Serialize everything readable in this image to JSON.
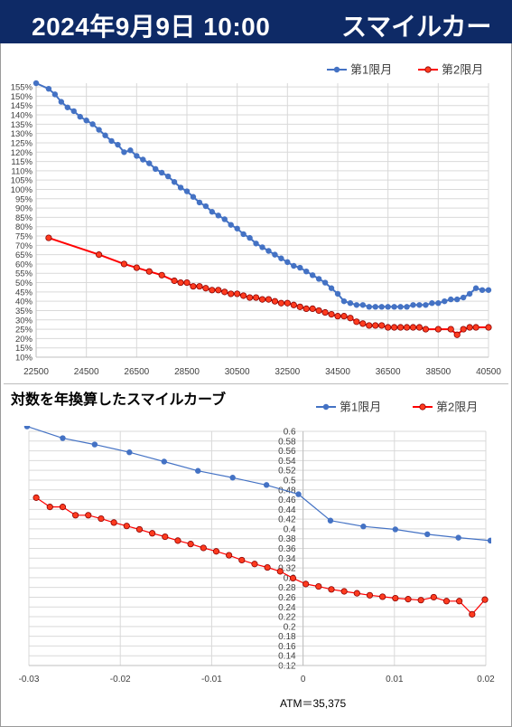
{
  "header": {
    "date": "2024年9月9日 10:00",
    "title": "スマイルカーブ"
  },
  "colors": {
    "header_bg": "#0e2a66",
    "series1": "#4472c4",
    "series2": "#ff0000"
  },
  "chart_data": [
    {
      "type": "line",
      "title": "",
      "legend": "top-right",
      "grid": true,
      "xlim": [
        22500,
        40500
      ],
      "ylim": [
        10,
        157
      ],
      "x_ticks": [
        22500,
        24500,
        26500,
        28500,
        30500,
        32500,
        34500,
        36500,
        38500,
        40500
      ],
      "y_ticks": [
        10,
        15,
        20,
        25,
        30,
        35,
        40,
        45,
        50,
        55,
        60,
        65,
        70,
        75,
        80,
        85,
        90,
        95,
        100,
        105,
        110,
        115,
        120,
        125,
        130,
        135,
        140,
        145,
        150,
        155
      ],
      "y_tick_suffix": "%",
      "series": [
        {
          "name": "第1限月",
          "x": [
            22500,
            23000,
            23250,
            23500,
            23750,
            24000,
            24250,
            24500,
            24750,
            25000,
            25250,
            25500,
            25750,
            26000,
            26250,
            26500,
            26750,
            27000,
            27250,
            27500,
            27750,
            28000,
            28250,
            28500,
            28750,
            29000,
            29250,
            29500,
            29750,
            30000,
            30250,
            30500,
            30750,
            31000,
            31250,
            31500,
            31750,
            32000,
            32250,
            32500,
            32750,
            33000,
            33250,
            33500,
            33750,
            34000,
            34250,
            34500,
            34750,
            35000,
            35250,
            35500,
            35750,
            36000,
            36250,
            36500,
            36750,
            37000,
            37250,
            37500,
            37750,
            38000,
            38250,
            38500,
            38750,
            39000,
            39250,
            39500,
            39750,
            40000,
            40250,
            40500
          ],
          "values": [
            157,
            154,
            151,
            147,
            144,
            142,
            139,
            137,
            135,
            132,
            129,
            126,
            124,
            120,
            121,
            118,
            116,
            114,
            111,
            109,
            107,
            104,
            101,
            99,
            96,
            93,
            91,
            88,
            86,
            84,
            81,
            79,
            76,
            74,
            71,
            69,
            67,
            65,
            63,
            61,
            59,
            58,
            56,
            54,
            52,
            50,
            47,
            44,
            40,
            39,
            38,
            38,
            37,
            37,
            37,
            37,
            37,
            37,
            37,
            38,
            38,
            38,
            39,
            39,
            40,
            41,
            41,
            42,
            44,
            47,
            46,
            46
          ]
        },
        {
          "name": "第2限月",
          "x": [
            23000,
            25000,
            26000,
            26500,
            27000,
            27500,
            28000,
            28250,
            28500,
            28750,
            29000,
            29250,
            29500,
            29750,
            30000,
            30250,
            30500,
            30750,
            31000,
            31250,
            31500,
            31750,
            32000,
            32250,
            32500,
            32750,
            33000,
            33250,
            33500,
            33750,
            34000,
            34250,
            34500,
            34750,
            35000,
            35250,
            35500,
            35750,
            36000,
            36250,
            36500,
            36750,
            37000,
            37250,
            37500,
            37750,
            38000,
            38500,
            39000,
            39250,
            39500,
            39750,
            40000,
            40500
          ],
          "values": [
            74,
            65,
            60,
            58,
            56,
            54,
            51,
            50,
            50,
            48,
            48,
            47,
            46,
            46,
            45,
            44,
            44,
            43,
            42,
            42,
            41,
            41,
            40,
            39,
            39,
            38,
            37,
            36,
            36,
            35,
            34,
            33,
            32,
            32,
            31,
            29,
            28,
            27,
            27,
            27,
            26,
            26,
            26,
            26,
            26,
            26,
            25,
            25,
            25,
            22,
            25,
            26,
            26,
            26
          ]
        }
      ]
    },
    {
      "type": "line",
      "title": "対数を年換算したスマイルカーブ",
      "legend": "top-right",
      "grid": true,
      "xlim": [
        -0.03,
        0.02
      ],
      "ylim": [
        0.12,
        0.6
      ],
      "x_ticks": [
        -0.03,
        -0.02,
        -0.01,
        0,
        0.01,
        0.02
      ],
      "y_ticks": [
        0.12,
        0.14,
        0.16,
        0.18,
        0.2,
        0.22,
        0.24,
        0.26,
        0.28,
        0.3,
        0.32,
        0.34,
        0.36,
        0.38,
        0.4,
        0.42,
        0.44,
        0.46,
        0.48,
        0.5,
        0.52,
        0.54,
        0.56,
        0.58,
        0.6
      ],
      "annotation": "ATM＝35,375",
      "series": [
        {
          "name": "第1限月",
          "x": [
            -0.0302,
            -0.0263,
            -0.0228,
            -0.019,
            -0.0152,
            -0.0115,
            -0.0077,
            -0.004,
            -0.0005,
            0.003,
            0.0066,
            0.0101,
            0.0136,
            0.017,
            0.0205
          ],
          "values": [
            0.61,
            0.586,
            0.573,
            0.557,
            0.538,
            0.519,
            0.505,
            0.49,
            0.471,
            0.417,
            0.405,
            0.399,
            0.389,
            0.382,
            0.376
          ]
        },
        {
          "name": "第2限月",
          "x": [
            -0.0292,
            -0.0277,
            -0.0263,
            -0.0249,
            -0.0235,
            -0.0221,
            -0.0207,
            -0.0193,
            -0.0179,
            -0.0165,
            -0.0151,
            -0.0137,
            -0.0123,
            -0.0109,
            -0.0095,
            -0.0081,
            -0.0067,
            -0.0053,
            -0.0039,
            -0.0025,
            -0.0011,
            0.0003,
            0.0017,
            0.0031,
            0.0045,
            0.0059,
            0.0073,
            0.0087,
            0.0101,
            0.0115,
            0.0129,
            0.0143,
            0.0157,
            0.0171,
            0.0185,
            0.0199
          ],
          "values": [
            0.464,
            0.445,
            0.445,
            0.428,
            0.428,
            0.421,
            0.413,
            0.406,
            0.399,
            0.391,
            0.384,
            0.376,
            0.369,
            0.361,
            0.354,
            0.346,
            0.336,
            0.328,
            0.321,
            0.313,
            0.299,
            0.287,
            0.282,
            0.276,
            0.272,
            0.268,
            0.264,
            0.261,
            0.258,
            0.256,
            0.254,
            0.26,
            0.252,
            0.252,
            0.225,
            0.255
          ]
        }
      ]
    }
  ]
}
